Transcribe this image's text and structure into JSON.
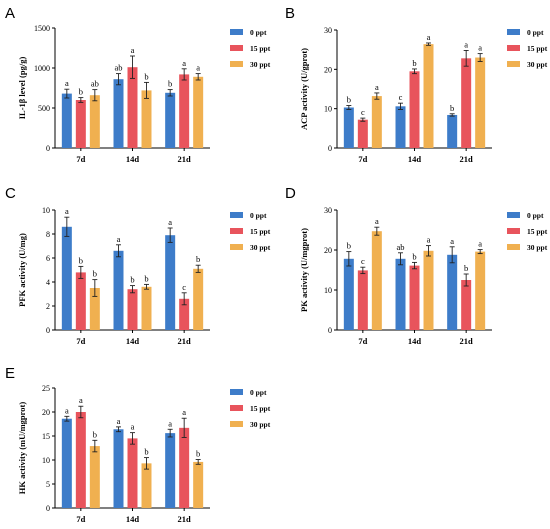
{
  "colors": {
    "series": [
      "#3d7cc9",
      "#e8545c",
      "#f0b050"
    ],
    "axis": "#000000"
  },
  "chart_data": [
    {
      "panel": "A",
      "type": "bar",
      "ylabel": "IL-1β level (pg/g)",
      "ylim": [
        0,
        1500
      ],
      "yticks": [
        0,
        500,
        1000,
        1500
      ],
      "categories": [
        "7d",
        "14d",
        "21d"
      ],
      "series": [
        {
          "name": "0 ppt",
          "values": [
            680,
            860,
            690
          ],
          "errors": [
            55,
            70,
            40
          ],
          "labels": [
            "a",
            "ab",
            "b"
          ]
        },
        {
          "name": "15 ppt",
          "values": [
            600,
            1010,
            920
          ],
          "errors": [
            30,
            140,
            70
          ],
          "labels": [
            "b",
            "a",
            "a"
          ]
        },
        {
          "name": "30 ppt",
          "values": [
            660,
            720,
            890
          ],
          "errors": [
            70,
            100,
            40
          ],
          "labels": [
            "ab",
            "b",
            "a"
          ]
        }
      ]
    },
    {
      "panel": "B",
      "type": "bar",
      "ylabel": "ACP activity (U/gprot)",
      "ylim": [
        0,
        30
      ],
      "yticks": [
        0,
        10,
        20,
        30
      ],
      "categories": [
        "7d",
        "14d",
        "21d"
      ],
      "series": [
        {
          "name": "0 ppt",
          "values": [
            10.3,
            10.6,
            8.4
          ],
          "errors": [
            0.5,
            0.8,
            0.3
          ],
          "labels": [
            "b",
            "c",
            "b"
          ]
        },
        {
          "name": "15 ppt",
          "values": [
            7.2,
            19.5,
            22.8
          ],
          "errors": [
            0.4,
            0.6,
            2.0
          ],
          "labels": [
            "c",
            "b",
            "a"
          ]
        },
        {
          "name": "30 ppt",
          "values": [
            13.2,
            26.4,
            23.0
          ],
          "errors": [
            0.8,
            0.3,
            1.0
          ],
          "labels": [
            "a",
            "a",
            "a"
          ]
        }
      ]
    },
    {
      "panel": "C",
      "type": "bar",
      "ylabel": "PFK activity (U/mg)",
      "ylim": [
        0,
        10
      ],
      "yticks": [
        0,
        2,
        4,
        6,
        8,
        10
      ],
      "categories": [
        "7d",
        "14d",
        "21d"
      ],
      "series": [
        {
          "name": "0 ppt",
          "values": [
            8.6,
            6.6,
            7.9
          ],
          "errors": [
            0.8,
            0.5,
            0.6
          ],
          "labels": [
            "a",
            "a",
            "a"
          ]
        },
        {
          "name": "15 ppt",
          "values": [
            4.8,
            3.4,
            2.6
          ],
          "errors": [
            0.5,
            0.3,
            0.5
          ],
          "labels": [
            "b",
            "b",
            "c"
          ]
        },
        {
          "name": "30 ppt",
          "values": [
            3.5,
            3.6,
            5.1
          ],
          "errors": [
            0.7,
            0.2,
            0.3
          ],
          "labels": [
            "b",
            "b",
            "b"
          ]
        }
      ]
    },
    {
      "panel": "D",
      "type": "bar",
      "ylabel": "PK activity (U/mgprot)",
      "ylim": [
        0,
        30
      ],
      "yticks": [
        0,
        10,
        20,
        30
      ],
      "categories": [
        "7d",
        "14d",
        "21d"
      ],
      "series": [
        {
          "name": "0 ppt",
          "values": [
            17.8,
            17.8,
            18.8
          ],
          "errors": [
            1.8,
            1.5,
            2.0
          ],
          "labels": [
            "b",
            "ab",
            "a"
          ]
        },
        {
          "name": "15 ppt",
          "values": [
            14.9,
            16.1,
            12.5
          ],
          "errors": [
            0.8,
            0.8,
            1.5
          ],
          "labels": [
            "c",
            "b",
            "b"
          ]
        },
        {
          "name": "30 ppt",
          "values": [
            24.7,
            19.8,
            19.6
          ],
          "errors": [
            1.0,
            1.3,
            0.5
          ],
          "labels": [
            "a",
            "a",
            "a"
          ]
        }
      ]
    },
    {
      "panel": "E",
      "type": "bar",
      "ylabel": "HK activity (mU/mgprot)",
      "ylim": [
        0,
        25
      ],
      "yticks": [
        0,
        5,
        10,
        15,
        20,
        25
      ],
      "categories": [
        "7d",
        "14d",
        "21d"
      ],
      "series": [
        {
          "name": "0 ppt",
          "values": [
            18.6,
            16.4,
            15.6
          ],
          "errors": [
            0.5,
            0.5,
            0.8
          ],
          "labels": [
            "a",
            "a",
            "a"
          ]
        },
        {
          "name": "15 ppt",
          "values": [
            20.0,
            14.5,
            16.7
          ],
          "errors": [
            1.2,
            1.2,
            2.0
          ],
          "labels": [
            "a",
            "a",
            "a"
          ]
        },
        {
          "name": "30 ppt",
          "values": [
            12.9,
            9.3,
            9.6
          ],
          "errors": [
            1.2,
            1.2,
            0.5
          ],
          "labels": [
            "b",
            "b",
            "b"
          ]
        }
      ]
    }
  ]
}
